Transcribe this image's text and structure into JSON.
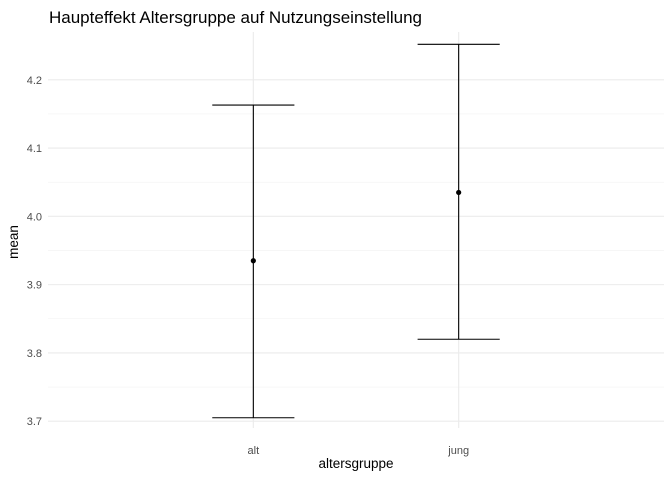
{
  "chart_data": {
    "type": "errorbar",
    "title": "Haupteffekt Altersgruppe auf Nutzungseinstellung",
    "xlabel": "altersgruppe",
    "ylabel": "mean",
    "categories": [
      "alt",
      "jung"
    ],
    "points": [
      {
        "category": "alt",
        "mean": 3.935,
        "lower": 3.705,
        "upper": 4.163
      },
      {
        "category": "jung",
        "mean": 4.035,
        "lower": 3.82,
        "upper": 4.252
      }
    ],
    "ylim": [
      3.69,
      4.27
    ],
    "yticks": [
      3.7,
      3.8,
      3.9,
      4.0,
      4.1,
      4.2
    ],
    "ytick_labels": [
      "3.7",
      "3.8",
      "3.9",
      "4.0",
      "4.1",
      "4.2"
    ],
    "grid": true,
    "legend": "none",
    "colors": {
      "mark": "#000000",
      "grid": "#ebebeb",
      "tick_text": "#4d4d4d"
    }
  }
}
